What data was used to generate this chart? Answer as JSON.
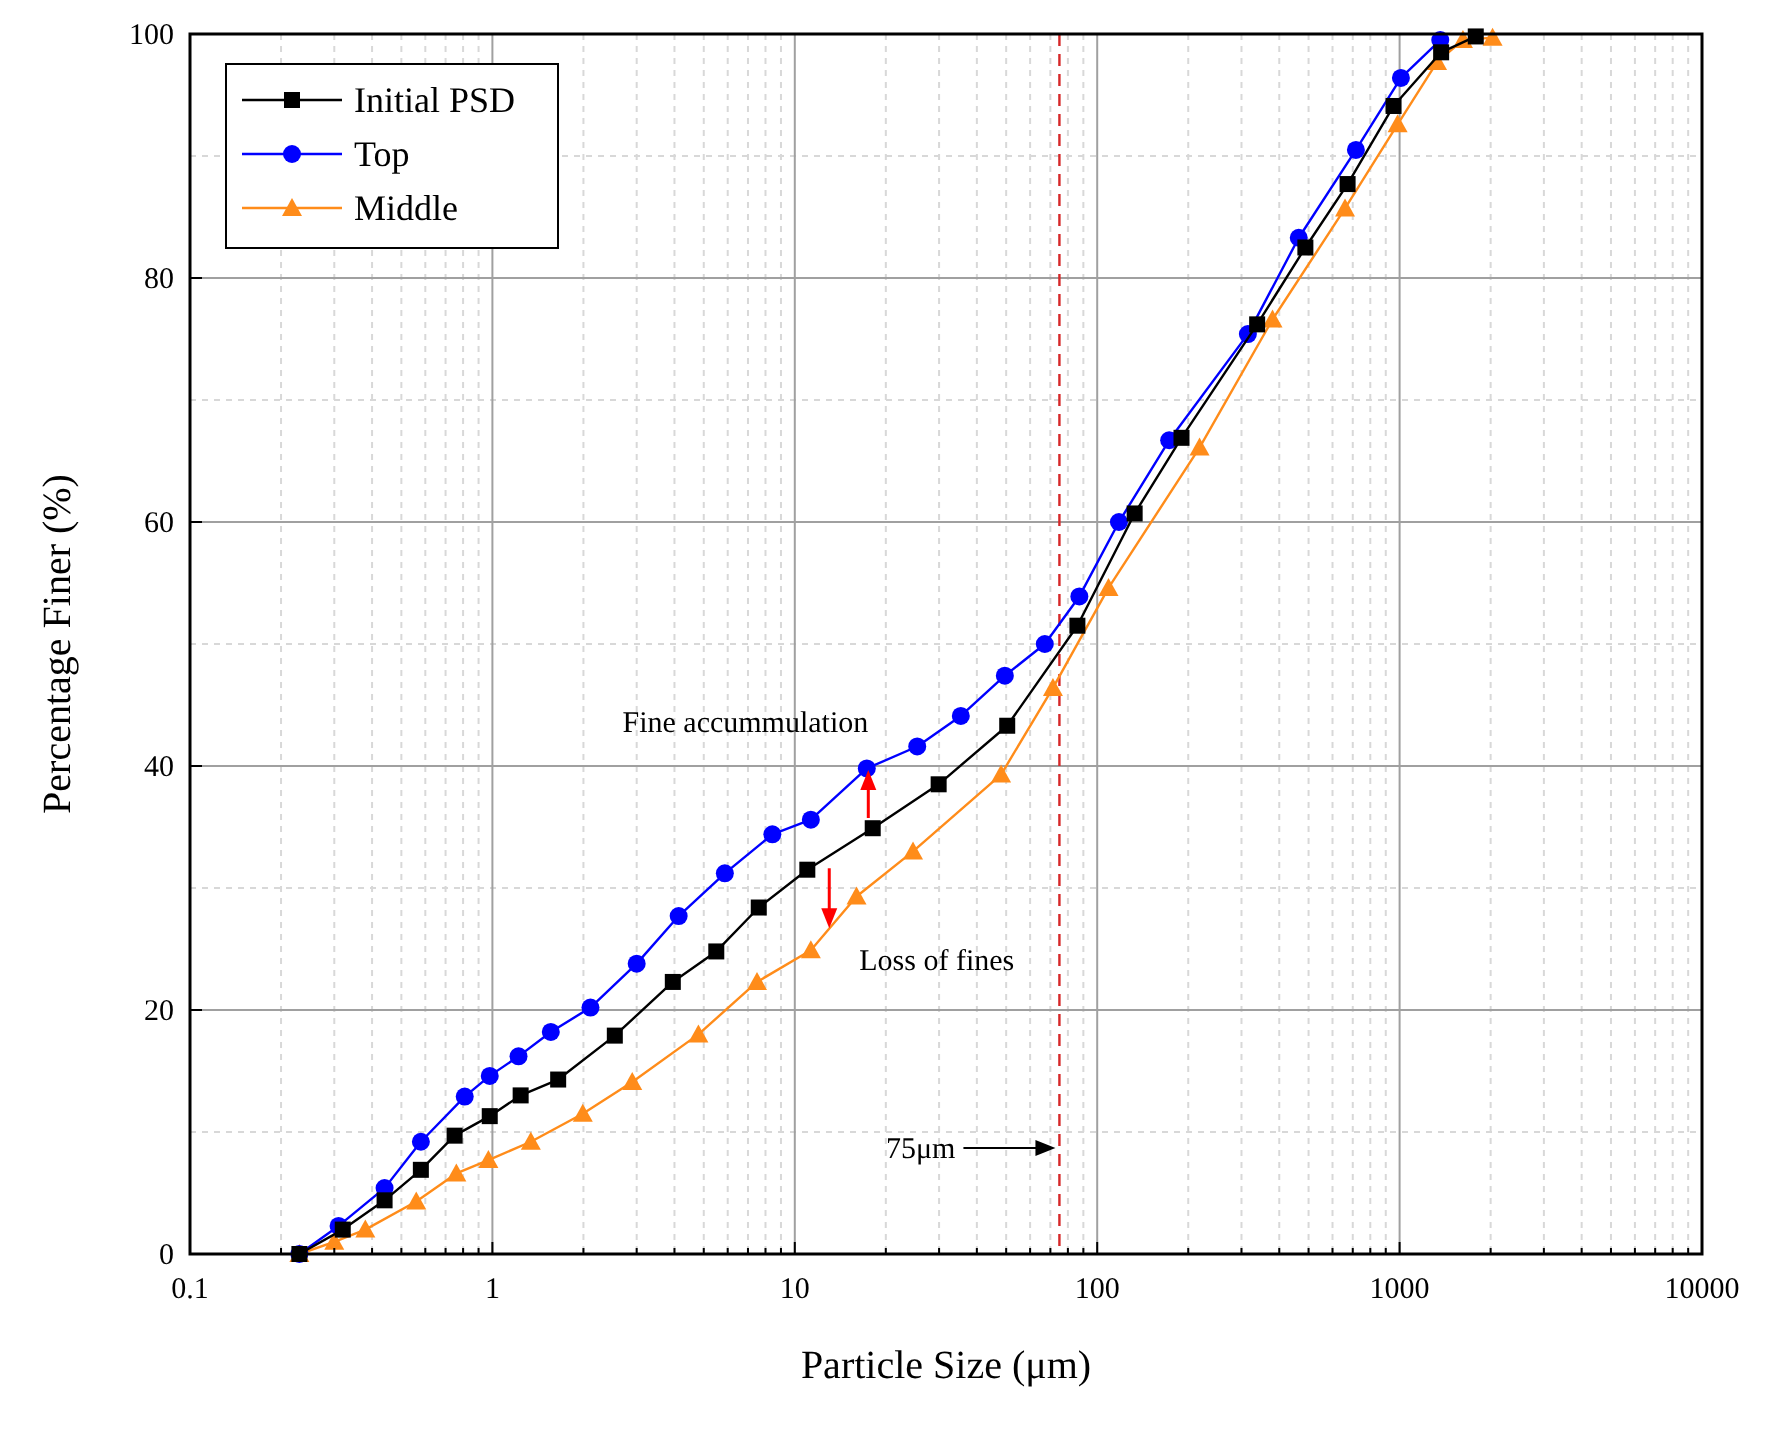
{
  "chart_data": {
    "type": "line",
    "xlabel": "Particle Size (μm)",
    "ylabel": "Percentage Finer (%)",
    "log": "x",
    "xlim": [
      0.1,
      10000
    ],
    "xticks": [
      0.1,
      1,
      10,
      100,
      1000,
      10000
    ],
    "ylim": [
      0,
      100
    ],
    "yticks": [
      0,
      20,
      40,
      60,
      80,
      100
    ],
    "grid": true,
    "legend": "top left",
    "line_style": "solid",
    "series": [
      {
        "name": "Initial PSD",
        "color": "#000000",
        "marker": "square",
        "x": [
          0.23,
          0.32,
          0.44,
          0.58,
          0.75,
          0.98,
          1.24,
          1.65,
          2.54,
          3.95,
          5.5,
          7.6,
          11,
          18.1,
          29.9,
          50.4,
          86,
          133,
          190,
          338,
          488,
          673,
          955,
          1372,
          1786
        ],
        "values": [
          0,
          2,
          4.4,
          6.9,
          9.7,
          11.3,
          13,
          14.3,
          17.9,
          22.3,
          24.8,
          28.4,
          31.5,
          34.9,
          38.5,
          43.3,
          51.5,
          60.7,
          66.9,
          76.2,
          82.5,
          87.7,
          94.1,
          98.5,
          99.8
        ]
      },
      {
        "name": "Top",
        "color": "#0000ff",
        "marker": "circle",
        "x": [
          0.23,
          0.31,
          0.44,
          0.58,
          0.81,
          0.98,
          1.22,
          1.56,
          2.11,
          3,
          4.13,
          5.87,
          8.43,
          11.3,
          17.3,
          25.4,
          35.4,
          49.5,
          67.1,
          87.3,
          118,
          173,
          315,
          464,
          717,
          1010,
          1363
        ],
        "values": [
          0,
          2.3,
          5.4,
          9.2,
          12.9,
          14.6,
          16.2,
          18.2,
          20.2,
          23.8,
          27.7,
          31.2,
          34.4,
          35.6,
          39.8,
          41.6,
          44.1,
          47.4,
          50,
          53.9,
          60,
          66.7,
          75.4,
          83.3,
          90.5,
          96.4,
          99.5
        ]
      },
      {
        "name": "Middle",
        "color": "#ff8c1a",
        "marker": "triangle",
        "x": [
          0.23,
          0.3,
          0.38,
          0.56,
          0.76,
          0.97,
          1.34,
          1.99,
          2.9,
          4.8,
          7.5,
          11.3,
          16,
          24.6,
          48.1,
          71.4,
          109,
          218,
          380,
          660,
          985,
          1330,
          1620,
          2030
        ],
        "values": [
          0,
          1,
          2,
          4.3,
          6.6,
          7.7,
          9.2,
          11.5,
          14.1,
          18,
          22.3,
          24.9,
          29.3,
          33,
          39.3,
          46.4,
          54.6,
          66.1,
          76.6,
          85.7,
          92.6,
          97.7,
          99.5,
          99.7
        ]
      }
    ],
    "ref_lines": [
      {
        "axis": "x",
        "value": 75,
        "label": "75μm",
        "color": "#d62728",
        "line_style": "dashed"
      }
    ],
    "annotations": [
      {
        "text": "Fine accummulation",
        "x": 17.5,
        "y": 40
      },
      {
        "text": "Loss of fines",
        "x": 13,
        "y": 26.7
      }
    ]
  }
}
